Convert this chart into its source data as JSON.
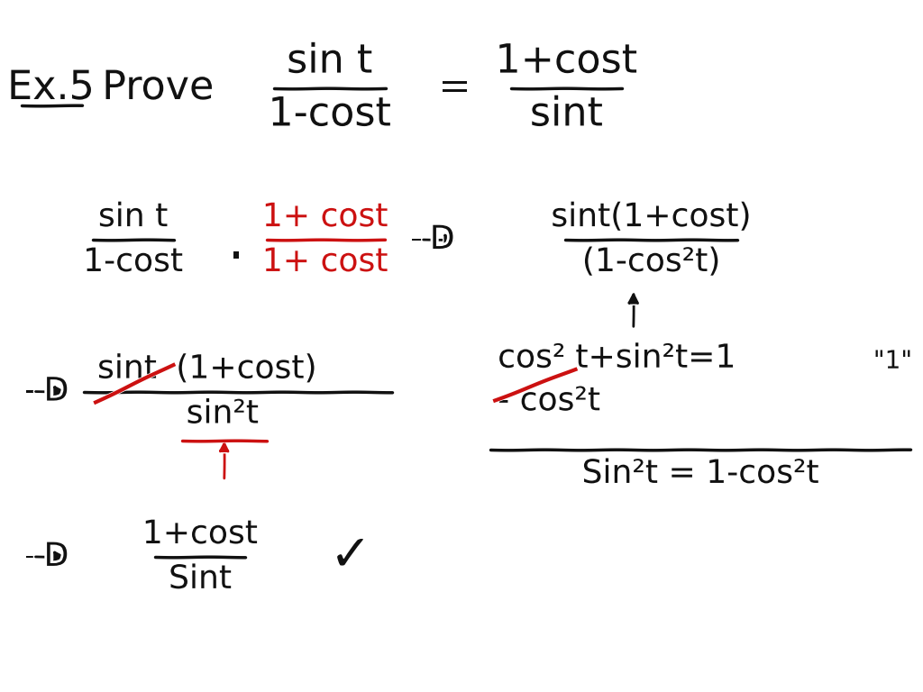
{
  "bg_color": "#ffffff",
  "figsize": [
    10.24,
    7.68
  ],
  "dpi": 100,
  "black": "#111111",
  "red": "#cc1111",
  "fs1": 32,
  "fs2": 26,
  "fs3": 24
}
